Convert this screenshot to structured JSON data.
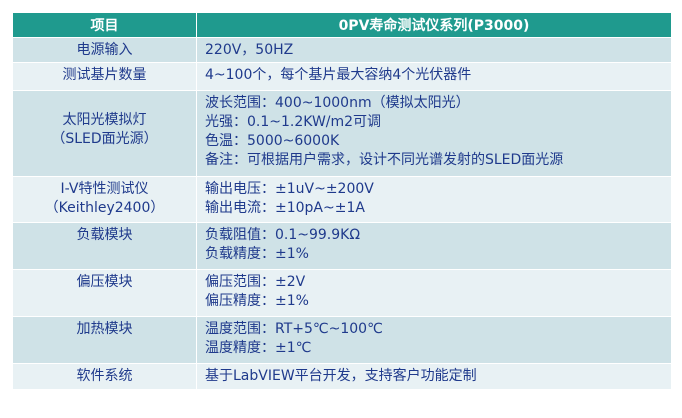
{
  "header": {
    "item": "项目",
    "title": "0PV寿命测试仪系列(P3000)"
  },
  "rows": [
    {
      "item": [
        "电源输入"
      ],
      "desc": [
        "220V，50HZ"
      ]
    },
    {
      "item": [
        "测试基片数量"
      ],
      "desc": [
        "4~100个，每个基片最大容纳4个光伏器件"
      ]
    },
    {
      "item": [
        "太阳光模拟灯",
        "（SLED面光源）"
      ],
      "desc": [
        "波长范围：400~1000nm（模拟太阳光）",
        "光强：0.1~1.2KW/m2可调",
        "色温：5000~6000K",
        "备注：可根据用户需求，设计不同光谱发射的SLED面光源"
      ]
    },
    {
      "item": [
        "I-V特性测试仪",
        "（Keithley2400）"
      ],
      "desc": [
        "输出电压：±1uV~±200V",
        "输出电流：±10pA~±1A"
      ]
    },
    {
      "item": [
        "负载模块"
      ],
      "desc": [
        "负载阻值：0.1~99.9KΩ",
        "负载精度：±1%"
      ]
    },
    {
      "item": [
        "偏压模块"
      ],
      "desc": [
        "偏压范围：±2V",
        "偏压精度：±1%"
      ]
    },
    {
      "item": [
        "加热模块"
      ],
      "desc": [
        "温度范围：RT+5℃~100℃",
        "温度精度：±1℃"
      ]
    },
    {
      "item": [
        "软件系统"
      ],
      "desc": [
        "基于LabVIEW平台开发，支持客户功能定制"
      ]
    }
  ]
}
